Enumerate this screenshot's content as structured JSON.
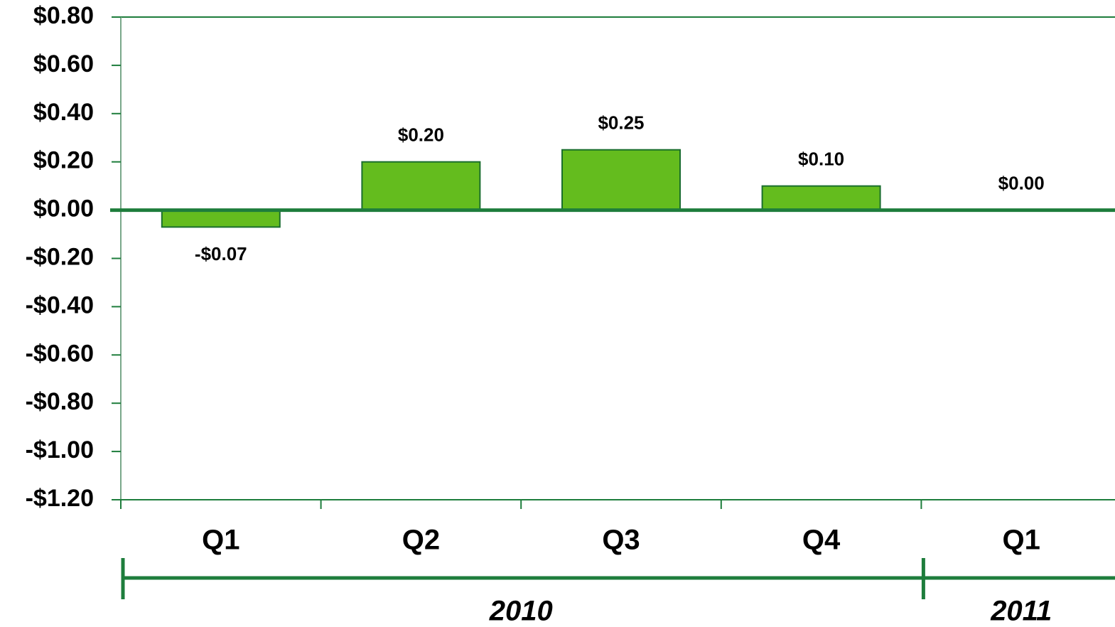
{
  "chart_data": {
    "type": "bar",
    "categories": [
      "Q1",
      "Q2",
      "Q3",
      "Q4",
      "Q1"
    ],
    "values": [
      -0.07,
      0.2,
      0.25,
      0.1,
      0
    ],
    "value_labels": [
      "-$0.07",
      "$0.20",
      "$0.25",
      "$0.10",
      "$0.00"
    ],
    "x_groups": [
      {
        "name": "2010",
        "count": 4
      },
      {
        "name": "2011",
        "count": 1
      }
    ],
    "color": "#64bc1e",
    "ylim": [
      -1.2,
      0.8
    ],
    "yticks": [
      {
        "value": 0.8,
        "label": "$0.80"
      },
      {
        "value": 0.6,
        "label": "$0.60"
      },
      {
        "value": 0.4,
        "label": "$0.40"
      },
      {
        "value": 0.2,
        "label": "$0.20"
      },
      {
        "value": 0,
        "label": "$0.00"
      },
      {
        "value": -0.2,
        "label": "-$0.20"
      },
      {
        "value": -0.4,
        "label": "-$0.40"
      },
      {
        "value": -0.6,
        "label": "-$0.60"
      },
      {
        "value": -0.8,
        "label": "-$0.80"
      },
      {
        "value": -1,
        "label": "-$1.00"
      },
      {
        "value": -1.2,
        "label": "-$1.20"
      }
    ],
    "grid": false
  }
}
